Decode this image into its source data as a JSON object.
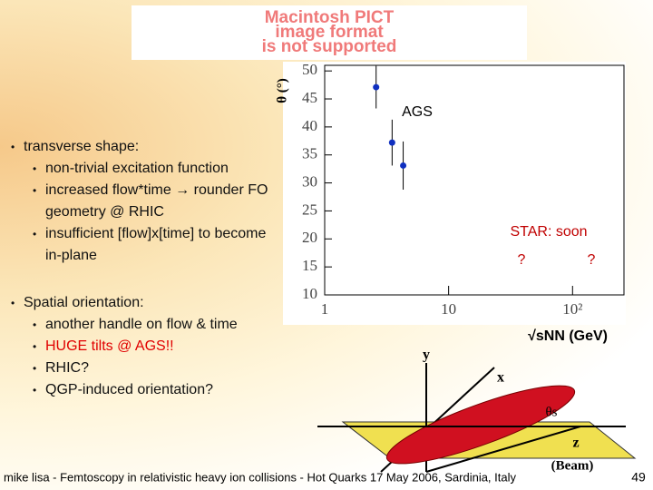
{
  "placeholder": [
    "Macintosh PICT",
    "image format",
    "is not supported"
  ],
  "bullets": [
    {
      "text": "transverse shape:",
      "sub": [
        {
          "text": "non-trivial excitation function"
        },
        {
          "text": "increased flow*time → rounder FO geometry @ RHIC"
        },
        {
          "text": "insufficient [flow]x[time] to become in-plane"
        }
      ]
    },
    {
      "text": "Spatial orientation:",
      "sub": [
        {
          "text": "another handle on flow & time"
        },
        {
          "text": "HUGE tilts @ AGS!!",
          "color": "#e00000"
        },
        {
          "text": "RHIC?"
        },
        {
          "text": "QGP-induced orientation?"
        }
      ]
    }
  ],
  "chart_data": {
    "type": "scatter",
    "x_label": "√sNN (GeV)",
    "y_label": "θ (°)",
    "x": [
      2.6,
      3.5,
      4.3
    ],
    "values": [
      47.1,
      37.2,
      33.1
    ],
    "errors": [
      3.8,
      4.1,
      4.3
    ],
    "color": "#1030c0",
    "xlim": [
      1,
      260
    ],
    "xticks": [
      1,
      10,
      {
        "value": 100,
        "label": "10²"
      }
    ],
    "ylim": [
      10,
      51
    ],
    "yticks": [
      10,
      15,
      20,
      25,
      30,
      35,
      40,
      45,
      50
    ],
    "log_x": true,
    "annotations": [
      "AGS",
      "STAR: soon",
      "?",
      "?"
    ]
  },
  "diagram": {
    "labels": [
      "y",
      "x",
      "θs",
      "z",
      "(Beam)"
    ]
  },
  "footer": "mike lisa - Femtoscopy in relativistic heavy ion collisions - Hot Quarks 17 May 2006, Sardinia, Italy",
  "page_number": "49"
}
